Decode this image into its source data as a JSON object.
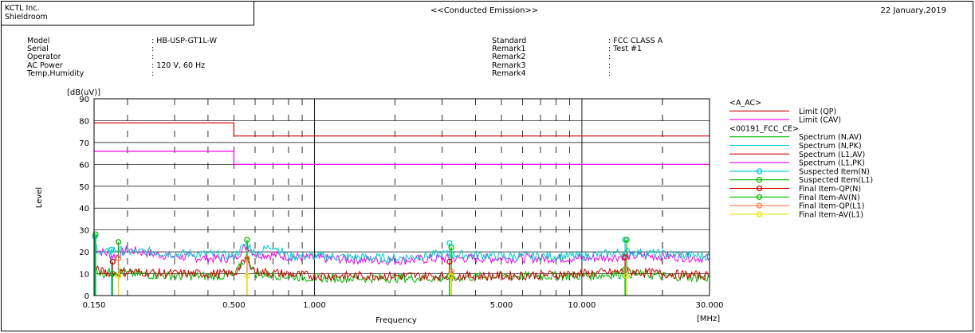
{
  "header": {
    "company": "KCTL Inc.",
    "site": "Shieldroom",
    "title": "<<Conducted Emission>>",
    "date": "22 January,2019"
  },
  "info_left": [
    {
      "label": "Model",
      "value": ": HB-USP-GT1L-W"
    },
    {
      "label": "Serial",
      "value": ":"
    },
    {
      "label": "Operator",
      "value": ":"
    },
    {
      "label": "AC Power",
      "value": ": 120 V, 60 Hz"
    },
    {
      "label": "Temp,Humidity",
      "value": ":"
    }
  ],
  "info_right": [
    {
      "label": "Standard",
      "value": ": FCC CLASS A"
    },
    {
      "label": "Remark1",
      "value": ": Test #1"
    },
    {
      "label": "Remark2",
      "value": ":"
    },
    {
      "label": "Remark3",
      "value": ":"
    },
    {
      "label": "Remark4",
      "value": ":"
    }
  ],
  "chart_data": {
    "type": "line",
    "xlabel": "Frequency",
    "xunit": "[MHz]",
    "ylabel": "Level",
    "yunit": "[dB(uV)]",
    "xscale": "log",
    "xlim": [
      0.15,
      30
    ],
    "ylim": [
      0,
      90
    ],
    "yticks": [
      0,
      10,
      20,
      30,
      40,
      50,
      60,
      70,
      80,
      90
    ],
    "xtick_labels": [
      {
        "value": 0.15,
        "label": "0.150"
      },
      {
        "value": 0.5,
        "label": "0.500"
      },
      {
        "value": 1.0,
        "label": "1.000"
      },
      {
        "value": 5.0,
        "label": "5.000"
      },
      {
        "value": 10.0,
        "label": "10.000"
      },
      {
        "value": 30.0,
        "label": "30.000"
      }
    ],
    "grid": true,
    "legend_position": "right",
    "legend_groups": [
      {
        "title": "<A_AC>",
        "entries": [
          {
            "name": "Limit (QP)",
            "color": "#cc0000",
            "marker": false
          },
          {
            "name": "Limit (CAV)",
            "color": "#ee00ee",
            "marker": false
          }
        ]
      },
      {
        "title": "<00191_FCC_CE>",
        "entries": [
          {
            "name": "Spectrum (N,AV)",
            "color": "#00bb00",
            "marker": false
          },
          {
            "name": "Spectrum (N,PK)",
            "color": "#00cccc",
            "marker": false
          },
          {
            "name": "Spectrum (L1,AV)",
            "color": "#cc0000",
            "marker": false
          },
          {
            "name": "Spectrum (L1,PK)",
            "color": "#ee00ee",
            "marker": false
          },
          {
            "name": "Suspected Item(N)",
            "color": "#00cccc",
            "marker": true
          },
          {
            "name": "Suspected Item(L1)",
            "color": "#00bb00",
            "marker": true
          },
          {
            "name": "Final Item-QP(N)",
            "color": "#cc0000",
            "marker": true
          },
          {
            "name": "Final Item-AV(N)",
            "color": "#00bb00",
            "marker": true
          },
          {
            "name": "Final Item-QP(L1)",
            "color": "#ff7744",
            "marker": true
          },
          {
            "name": "Final Item-AV(L1)",
            "color": "#e6e600",
            "marker": true
          }
        ]
      }
    ],
    "limits": [
      {
        "name": "Limit (QP)",
        "color": "#cc0000",
        "points": [
          [
            0.15,
            79
          ],
          [
            0.5,
            79
          ],
          [
            0.5,
            73
          ],
          [
            30,
            73
          ]
        ]
      },
      {
        "name": "Limit (CAV)",
        "color": "#ee00ee",
        "points": [
          [
            0.15,
            66
          ],
          [
            0.5,
            66
          ],
          [
            0.5,
            60
          ],
          [
            30,
            60
          ]
        ]
      }
    ],
    "spectra": [
      {
        "name": "Spectrum (L1,PK)",
        "color": "#ee00ee",
        "points": [
          [
            0.15,
            22
          ],
          [
            0.16,
            20
          ],
          [
            0.18,
            18
          ],
          [
            0.2,
            21
          ],
          [
            0.25,
            19
          ],
          [
            0.3,
            18
          ],
          [
            0.4,
            17
          ],
          [
            0.5,
            17
          ],
          [
            0.56,
            23
          ],
          [
            0.6,
            19
          ],
          [
            0.8,
            18
          ],
          [
            1.0,
            17
          ],
          [
            2.0,
            16
          ],
          [
            3.0,
            17
          ],
          [
            5.0,
            17
          ],
          [
            8.0,
            17
          ],
          [
            10.0,
            17
          ],
          [
            15.0,
            18
          ],
          [
            20.0,
            18
          ],
          [
            30.0,
            17
          ]
        ]
      },
      {
        "name": "Spectrum (N,PK)",
        "color": "#00cccc",
        "points": [
          [
            0.15,
            24
          ],
          [
            0.16,
            19
          ],
          [
            0.18,
            21
          ],
          [
            0.2,
            20
          ],
          [
            0.25,
            20
          ],
          [
            0.3,
            19
          ],
          [
            0.4,
            19
          ],
          [
            0.5,
            18
          ],
          [
            0.56,
            24
          ],
          [
            0.6,
            19
          ],
          [
            0.7,
            23
          ],
          [
            0.8,
            18
          ],
          [
            1.0,
            18
          ],
          [
            2.0,
            17
          ],
          [
            3.0,
            19
          ],
          [
            5.0,
            18
          ],
          [
            10.0,
            18
          ],
          [
            15.0,
            20
          ],
          [
            20.0,
            19
          ],
          [
            30.0,
            18
          ]
        ]
      },
      {
        "name": "Spectrum (N,AV)",
        "color": "#00bb00",
        "points": [
          [
            0.15,
            13
          ],
          [
            0.16,
            10
          ],
          [
            0.18,
            11
          ],
          [
            0.2,
            10
          ],
          [
            0.3,
            9
          ],
          [
            0.5,
            9
          ],
          [
            0.56,
            18
          ],
          [
            0.6,
            10
          ],
          [
            1.0,
            8
          ],
          [
            2.0,
            8
          ],
          [
            3.0,
            8
          ],
          [
            5.0,
            9
          ],
          [
            10.0,
            9
          ],
          [
            15.0,
            10
          ],
          [
            20.0,
            9
          ],
          [
            30.0,
            8
          ]
        ]
      },
      {
        "name": "Spectrum (L1,AV)",
        "color": "#cc0000",
        "points": [
          [
            0.15,
            12
          ],
          [
            0.16,
            11
          ],
          [
            0.18,
            10
          ],
          [
            0.2,
            11
          ],
          [
            0.3,
            10
          ],
          [
            0.5,
            10
          ],
          [
            0.56,
            17
          ],
          [
            0.6,
            11
          ],
          [
            1.0,
            9
          ],
          [
            2.0,
            9
          ],
          [
            3.0,
            9
          ],
          [
            5.0,
            9
          ],
          [
            10.0,
            10
          ],
          [
            15.0,
            11
          ],
          [
            20.0,
            10
          ],
          [
            30.0,
            9
          ]
        ]
      }
    ],
    "markers": [
      {
        "series": "Suspected Item(N)",
        "color": "#00cccc",
        "points": [
          [
            0.151,
            27
          ],
          [
            0.174,
            21
          ],
          [
            3.2,
            24
          ],
          [
            14.5,
            25.5
          ]
        ]
      },
      {
        "series": "Suspected Item(L1)",
        "color": "#00bb00",
        "points": [
          [
            0.152,
            28
          ],
          [
            0.185,
            24.5
          ],
          [
            0.56,
            25.5
          ],
          [
            3.25,
            22
          ],
          [
            14.7,
            25.5
          ]
        ]
      },
      {
        "series": "Final Item-QP(N)",
        "color": "#cc0000",
        "points": [
          [
            0.176,
            15.5
          ],
          [
            3.2,
            15.5
          ],
          [
            14.5,
            17.5
          ]
        ]
      },
      {
        "series": "Final Item-AV(N)",
        "color": "#00bb00",
        "points": [
          [
            0.176,
            10
          ],
          [
            3.2,
            9
          ],
          [
            14.5,
            12
          ]
        ]
      },
      {
        "series": "Final Item-QP(L1)",
        "color": "#ff7744",
        "points": [
          [
            0.185,
            17
          ],
          [
            0.56,
            17
          ],
          [
            3.25,
            11
          ],
          [
            14.7,
            12
          ]
        ]
      },
      {
        "series": "Final Item-AV(L1)",
        "color": "#e6e600",
        "points": [
          [
            0.185,
            9
          ],
          [
            0.56,
            9
          ],
          [
            3.25,
            9
          ],
          [
            14.7,
            9
          ]
        ]
      }
    ]
  }
}
